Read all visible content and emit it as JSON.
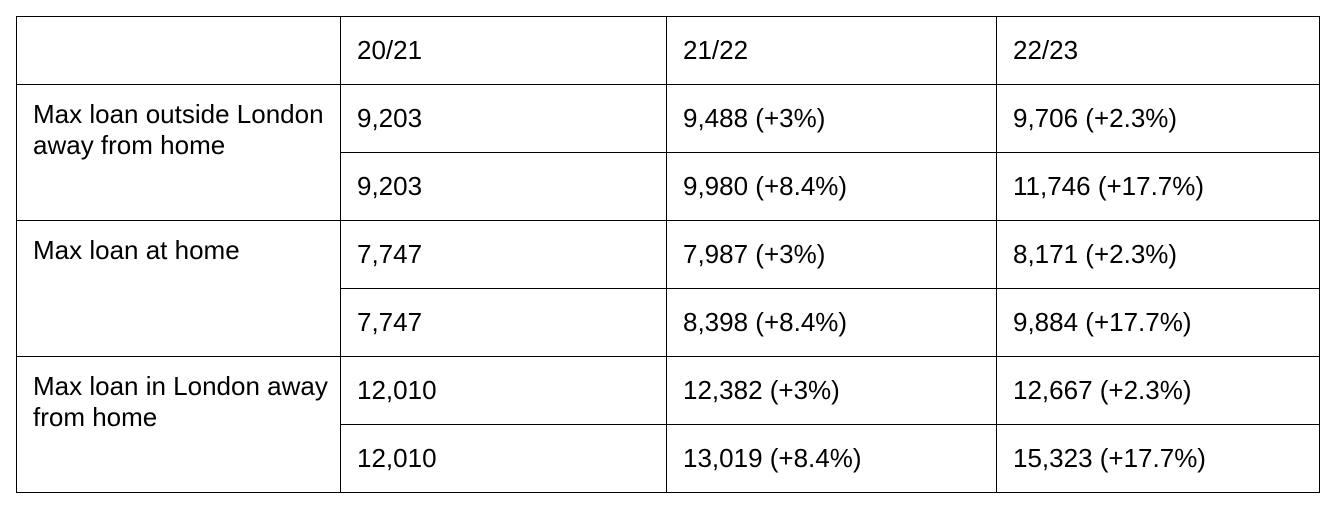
{
  "table": {
    "headers": [
      "",
      "20/21",
      "21/22",
      "22/23"
    ],
    "groups": [
      {
        "label": "Max loan outside London away from home",
        "rows": [
          [
            "9,203",
            "9,488 (+3%)",
            "9,706 (+2.3%)"
          ],
          [
            "9,203",
            "9,980 (+8.4%)",
            "11,746 (+17.7%)"
          ]
        ]
      },
      {
        "label": "Max loan at home",
        "rows": [
          [
            "7,747",
            "7,987 (+3%)",
            "8,171 (+2.3%)"
          ],
          [
            "7,747",
            "8,398 (+8.4%)",
            "9,884 (+17.7%)"
          ]
        ]
      },
      {
        "label": "Max loan in London away from home",
        "rows": [
          [
            "12,010",
            "12,382 (+3%)",
            "12,667 (+2.3%)"
          ],
          [
            "12,010",
            "13,019 (+8.4%)",
            "15,323 (+17.7%)"
          ]
        ]
      }
    ]
  }
}
